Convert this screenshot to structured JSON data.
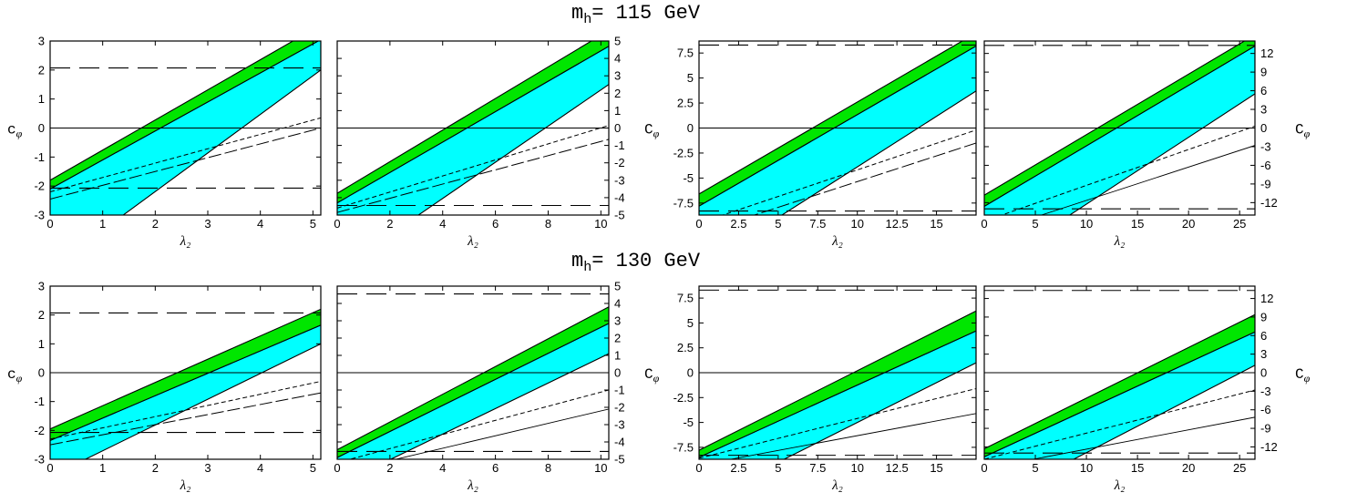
{
  "rows": [
    {
      "title_m": "m",
      "title_sub": "h",
      "title_rest": "= 115 GeV"
    },
    {
      "title_m": "m",
      "title_sub": "h",
      "title_rest": "= 130 GeV"
    }
  ],
  "colors": {
    "green": "#00e600",
    "cyan": "#00ffff",
    "line": "#000000"
  },
  "chart_data": [
    {
      "type": "area",
      "row": 0,
      "col": 0,
      "xlabel": "λ₂",
      "ylabel": "c_φ",
      "ylabel_side": "left",
      "xlim": [
        0,
        5.15
      ],
      "ylim": [
        -3,
        3
      ],
      "xticks": [
        0,
        1,
        2,
        3,
        4,
        5
      ],
      "xticklabels": [
        "0",
        "1",
        "2",
        "3",
        "4",
        "5"
      ],
      "yticks": [
        -3,
        -2,
        -1,
        0,
        1,
        2,
        3
      ],
      "yticklabels": [
        "-3",
        "-2",
        "-1",
        "0",
        "1",
        "2",
        "3"
      ],
      "ytick_side": "left",
      "bands": [
        {
          "fill": "green",
          "x": [
            0,
            5.15
          ],
          "lower": [
            -2.1,
            3.05
          ],
          "upper": [
            -1.8,
            3.55
          ]
        },
        {
          "fill": "cyan",
          "x": [
            0,
            5.15
          ],
          "lower": [
            -4.85,
            2.0
          ],
          "upper": [
            -2.1,
            3.05
          ]
        }
      ],
      "hlines": [
        {
          "y": 2.07,
          "style": "long-dash"
        },
        {
          "y": -2.07,
          "style": "long-dash"
        },
        {
          "y": 0,
          "style": "solid"
        }
      ],
      "curves": [
        {
          "style": "short-dash",
          "x": [
            0,
            5.15
          ],
          "y": [
            -2.2,
            0.35
          ]
        },
        {
          "style": "long-dash",
          "x": [
            0,
            5.15
          ],
          "y": [
            -2.45,
            0.0
          ]
        }
      ]
    },
    {
      "type": "area",
      "row": 0,
      "col": 1,
      "xlabel": "λ₂",
      "ylabel": "",
      "ylabel_side": "none",
      "xlim": [
        0,
        10.3
      ],
      "ylim": [
        -5,
        5
      ],
      "xticks": [
        0,
        2,
        4,
        6,
        8,
        10
      ],
      "xticklabels": [
        "0",
        "2",
        "4",
        "6",
        "8",
        "10"
      ],
      "yticks": [
        -5,
        -4,
        -3,
        -2,
        -1,
        0,
        1,
        2,
        3,
        4,
        5
      ],
      "yticklabels": [
        "-5",
        "-4",
        "-3",
        "-2",
        "-1",
        "0",
        "1",
        "2",
        "3",
        "4",
        "5"
      ],
      "ytick_side": "right",
      "bands": [
        {
          "fill": "green",
          "x": [
            0,
            10.3
          ],
          "lower": [
            -4.3,
            4.7
          ],
          "upper": [
            -3.75,
            5.6
          ]
        },
        {
          "fill": "cyan",
          "x": [
            0,
            10.3
          ],
          "lower": [
            -8.2,
            2.5
          ],
          "upper": [
            -4.3,
            4.7
          ]
        }
      ],
      "hlines": [
        {
          "y": -4.45,
          "style": "long-dash"
        },
        {
          "y": 0,
          "style": "solid"
        }
      ],
      "curves": [
        {
          "style": "short-dash",
          "x": [
            0,
            10.3
          ],
          "y": [
            -4.6,
            0.15
          ]
        },
        {
          "style": "long-dash",
          "x": [
            0,
            10.3
          ],
          "y": [
            -4.85,
            -0.65
          ]
        }
      ]
    },
    {
      "type": "area",
      "row": 0,
      "col": 2,
      "xlabel": "λ₂",
      "ylabel": "C_φ",
      "ylabel_side": "left",
      "xlim": [
        0,
        17.5
      ],
      "ylim": [
        -8.7,
        8.7
      ],
      "xticks": [
        0,
        2.5,
        5,
        7.5,
        10,
        12.5,
        15
      ],
      "xticklabels": [
        "0",
        "2.5",
        "5",
        "7.5",
        "10",
        "12.5",
        "15"
      ],
      "yticks": [
        -7.5,
        -5,
        -2.5,
        0,
        2.5,
        5,
        7.5
      ],
      "yticklabels": [
        "-7.5",
        "-5",
        "-2.5",
        "0",
        "2.5",
        "5",
        "7.5"
      ],
      "ytick_side": "left",
      "bands": [
        {
          "fill": "green",
          "x": [
            0,
            17.5
          ],
          "lower": [
            -7.8,
            8.2
          ],
          "upper": [
            -6.6,
            9.5
          ]
        },
        {
          "fill": "cyan",
          "x": [
            0,
            17.5
          ],
          "lower": [
            -14.0,
            3.7
          ],
          "upper": [
            -7.8,
            8.2
          ]
        }
      ],
      "hlines": [
        {
          "y": 8.3,
          "style": "long-dash"
        },
        {
          "y": -8.3,
          "style": "long-dash"
        },
        {
          "y": 0,
          "style": "solid"
        }
      ],
      "curves": [
        {
          "style": "short-dash",
          "x": [
            0,
            17.5
          ],
          "y": [
            -9.5,
            -0.2
          ]
        },
        {
          "style": "long-dash",
          "x": [
            0,
            17.5
          ],
          "y": [
            -10.5,
            -1.5
          ]
        }
      ]
    },
    {
      "type": "area",
      "row": 0,
      "col": 3,
      "xlabel": "λ₂",
      "ylabel": "C_φ",
      "ylabel_side": "right",
      "xlim": [
        0,
        26.5
      ],
      "ylim": [
        -14,
        14
      ],
      "xticks": [
        0,
        5,
        10,
        15,
        20,
        25
      ],
      "xticklabels": [
        "0",
        "5",
        "10",
        "15",
        "20",
        "25"
      ],
      "yticks": [
        -12,
        -9,
        -6,
        -3,
        0,
        3,
        6,
        9,
        12
      ],
      "yticklabels": [
        "-12",
        "-9",
        "-6",
        "-3",
        "0",
        "3",
        "6",
        "9",
        "12"
      ],
      "ytick_side": "right",
      "bands": [
        {
          "fill": "green",
          "x": [
            0,
            26.5
          ],
          "lower": [
            -12.6,
            13.2
          ],
          "upper": [
            -10.8,
            15.0
          ]
        },
        {
          "fill": "cyan",
          "x": [
            0,
            26.5
          ],
          "lower": [
            -23.0,
            5.5
          ],
          "upper": [
            -12.6,
            13.2
          ]
        }
      ],
      "hlines": [
        {
          "y": 13.3,
          "style": "long-dash"
        },
        {
          "y": -13.0,
          "style": "long-dash"
        },
        {
          "y": 0,
          "style": "solid"
        }
      ],
      "curves": [
        {
          "style": "short-dash",
          "x": [
            0,
            26.5
          ],
          "y": [
            -15.0,
            0.3
          ]
        },
        {
          "style": "solid-thin",
          "x": [
            0,
            26.5
          ],
          "y": [
            -17.0,
            -2.8
          ]
        }
      ]
    },
    {
      "type": "area",
      "row": 1,
      "col": 0,
      "xlabel": "λ₂",
      "ylabel": "c_φ",
      "ylabel_side": "left",
      "xlim": [
        0,
        5.15
      ],
      "ylim": [
        -3,
        3
      ],
      "xticks": [
        0,
        1,
        2,
        3,
        4,
        5
      ],
      "xticklabels": [
        "0",
        "1",
        "2",
        "3",
        "4",
        "5"
      ],
      "yticks": [
        -3,
        -2,
        -1,
        0,
        1,
        2,
        3
      ],
      "yticklabels": [
        "-3",
        "-2",
        "-1",
        "0",
        "1",
        "2",
        "3"
      ],
      "ytick_side": "left",
      "bands": [
        {
          "fill": "green",
          "x": [
            0,
            5.15
          ],
          "lower": [
            -2.35,
            1.65
          ],
          "upper": [
            -1.95,
            2.2
          ]
        },
        {
          "fill": "cyan",
          "x": [
            0,
            5.15
          ],
          "lower": [
            -3.6,
            1.0
          ],
          "upper": [
            -2.35,
            1.65
          ]
        }
      ],
      "hlines": [
        {
          "y": 2.07,
          "style": "long-dash"
        },
        {
          "y": -2.07,
          "style": "long-dash"
        },
        {
          "y": 0,
          "style": "solid"
        }
      ],
      "curves": [
        {
          "style": "short-dash",
          "x": [
            0,
            5.15
          ],
          "y": [
            -2.3,
            -0.3
          ]
        },
        {
          "style": "long-dash",
          "x": [
            0,
            5.15
          ],
          "y": [
            -2.5,
            -0.7
          ]
        }
      ]
    },
    {
      "type": "area",
      "row": 1,
      "col": 1,
      "xlabel": "λ₂",
      "ylabel": "",
      "ylabel_side": "none",
      "xlim": [
        0,
        10.3
      ],
      "ylim": [
        -5,
        5
      ],
      "xticks": [
        0,
        2,
        4,
        6,
        8,
        10
      ],
      "xticklabels": [
        "0",
        "2",
        "4",
        "6",
        "8",
        "10"
      ],
      "yticks": [
        -5,
        -4,
        -3,
        -2,
        -1,
        0,
        1,
        2,
        3,
        4,
        5
      ],
      "yticklabels": [
        "-5",
        "-4",
        "-3",
        "-2",
        "-1",
        "0",
        "1",
        "2",
        "3",
        "4",
        "5"
      ],
      "ytick_side": "right",
      "bands": [
        {
          "fill": "green",
          "x": [
            0,
            10.3
          ],
          "lower": [
            -4.9,
            2.85
          ],
          "upper": [
            -4.45,
            3.8
          ]
        },
        {
          "fill": "cyan",
          "x": [
            0,
            10.3
          ],
          "lower": [
            -6.5,
            1.1
          ],
          "upper": [
            -4.9,
            2.85
          ]
        }
      ],
      "hlines": [
        {
          "y": 4.55,
          "style": "long-dash"
        },
        {
          "y": -4.55,
          "style": "long-dash"
        },
        {
          "y": 0,
          "style": "solid"
        }
      ],
      "curves": [
        {
          "style": "short-dash",
          "x": [
            0,
            10.3
          ],
          "y": [
            -5.2,
            -1.0
          ]
        },
        {
          "style": "solid-thin",
          "x": [
            0,
            10.3
          ],
          "y": [
            -5.8,
            -2.1
          ]
        }
      ]
    },
    {
      "type": "area",
      "row": 1,
      "col": 2,
      "xlabel": "λ₂",
      "ylabel": "C_φ",
      "ylabel_side": "left",
      "xlim": [
        0,
        17.5
      ],
      "ylim": [
        -8.7,
        8.7
      ],
      "xticks": [
        0,
        2.5,
        5,
        7.5,
        10,
        12.5,
        15
      ],
      "xticklabels": [
        "0",
        "2.5",
        "5",
        "7.5",
        "10",
        "12.5",
        "15"
      ],
      "yticks": [
        -7.5,
        -5,
        -2.5,
        0,
        2.5,
        5,
        7.5
      ],
      "yticklabels": [
        "-7.5",
        "-5",
        "-2.5",
        "0",
        "2.5",
        "5",
        "7.5"
      ],
      "ytick_side": "left",
      "bands": [
        {
          "fill": "green",
          "x": [
            0,
            17.5
          ],
          "lower": [
            -8.5,
            4.2
          ],
          "upper": [
            -7.8,
            6.2
          ]
        },
        {
          "fill": "cyan",
          "x": [
            0,
            17.5
          ],
          "lower": [
            -13.0,
            1.0
          ],
          "upper": [
            -8.5,
            4.2
          ]
        }
      ],
      "hlines": [
        {
          "y": 8.3,
          "style": "long-dash"
        },
        {
          "y": -8.3,
          "style": "long-dash"
        },
        {
          "y": 0,
          "style": "solid"
        }
      ],
      "curves": [
        {
          "style": "short-dash",
          "x": [
            0,
            17.5
          ],
          "y": [
            -8.6,
            -1.6
          ]
        },
        {
          "style": "solid-thin",
          "x": [
            0,
            17.5
          ],
          "y": [
            -9.3,
            -4.1
          ]
        }
      ]
    },
    {
      "type": "area",
      "row": 1,
      "col": 3,
      "xlabel": "λ₂",
      "ylabel": "C_φ",
      "ylabel_side": "right",
      "xlim": [
        0,
        26.5
      ],
      "ylim": [
        -14,
        14
      ],
      "xticks": [
        0,
        5,
        10,
        15,
        20,
        25
      ],
      "xticklabels": [
        "0",
        "5",
        "10",
        "15",
        "20",
        "25"
      ],
      "yticks": [
        -12,
        -9,
        -6,
        -3,
        0,
        3,
        6,
        9,
        12
      ],
      "yticklabels": [
        "-12",
        "-9",
        "-6",
        "-3",
        "0",
        "3",
        "6",
        "9",
        "12"
      ],
      "ytick_side": "right",
      "bands": [
        {
          "fill": "green",
          "x": [
            0,
            26.5
          ],
          "lower": [
            -13.6,
            6.6
          ],
          "upper": [
            -12.3,
            9.4
          ]
        },
        {
          "fill": "cyan",
          "x": [
            0,
            26.5
          ],
          "lower": [
            -21.5,
            1.2
          ],
          "upper": [
            -13.6,
            6.6
          ]
        }
      ],
      "hlines": [
        {
          "y": 13.3,
          "style": "long-dash"
        },
        {
          "y": -13.0,
          "style": "long-dash"
        },
        {
          "y": 0,
          "style": "solid"
        }
      ],
      "curves": [
        {
          "style": "short-dash",
          "x": [
            0,
            26.5
          ],
          "y": [
            -14.0,
            -2.8
          ]
        },
        {
          "style": "solid-thin",
          "x": [
            0,
            26.5
          ],
          "y": [
            -15.5,
            -7.2
          ]
        }
      ]
    }
  ]
}
